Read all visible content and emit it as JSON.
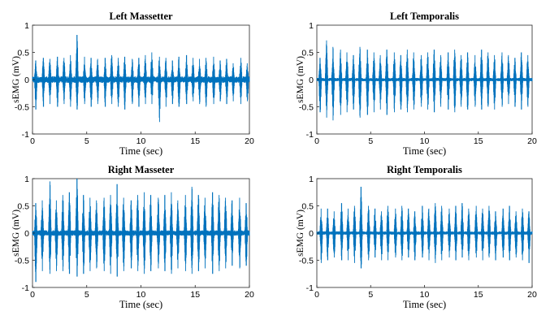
{
  "chart_data": [
    {
      "type": "line",
      "title": "Left Massetter",
      "xlabel": "Time (sec)",
      "ylabel": "sEMG (mV)",
      "xlim": [
        0,
        20
      ],
      "ylim": [
        -1,
        1
      ],
      "xticks": [
        "0",
        "5",
        "10",
        "15",
        "20"
      ],
      "yticks": [
        "1",
        "0.5",
        "0",
        "-0.5",
        "-1"
      ],
      "color": "#0072BD",
      "grid": false,
      "series": [
        {
          "burst_times": [
            0.3,
            1.0,
            1.6,
            2.3,
            2.9,
            3.5,
            4.1,
            4.8,
            5.4,
            6.0,
            6.7,
            7.3,
            7.9,
            8.5,
            9.2,
            9.8,
            10.4,
            11.0,
            11.7,
            12.3,
            12.9,
            13.5,
            14.2,
            14.8,
            15.4,
            16.0,
            16.7,
            17.3,
            17.9,
            18.5,
            19.2,
            19.8
          ],
          "burst_max": [
            0.35,
            0.4,
            0.38,
            0.42,
            0.4,
            0.45,
            0.82,
            0.42,
            0.4,
            0.38,
            0.4,
            0.45,
            0.4,
            0.42,
            0.38,
            0.4,
            0.45,
            0.5,
            0.42,
            0.4,
            0.35,
            0.42,
            0.45,
            0.4,
            0.38,
            0.4,
            0.42,
            0.35,
            0.38,
            0.3,
            0.4,
            0.3
          ],
          "burst_min": [
            -0.55,
            -0.5,
            -0.45,
            -0.5,
            -0.45,
            -0.5,
            -0.55,
            -0.45,
            -0.5,
            -0.45,
            -0.5,
            -0.45,
            -0.5,
            -0.55,
            -0.45,
            -0.5,
            -0.45,
            -0.45,
            -0.78,
            -0.5,
            -0.45,
            -0.5,
            -0.45,
            -0.4,
            -0.45,
            -0.5,
            -0.45,
            -0.4,
            -0.45,
            -0.4,
            -0.45,
            -0.4
          ],
          "baseline_amplitude": 0.06
        }
      ]
    },
    {
      "type": "line",
      "title": "Left Temporalis",
      "xlabel": "Time (sec)",
      "ylabel": "sEMG (mV)",
      "xlim": [
        0,
        20
      ],
      "ylim": [
        -1,
        1
      ],
      "xticks": [
        "0",
        "5",
        "10",
        "15",
        "20"
      ],
      "yticks": [
        "1",
        "0.5",
        "0",
        "-0.5",
        "-1"
      ],
      "color": "#0072BD",
      "grid": false,
      "series": [
        {
          "burst_times": [
            0.3,
            0.9,
            1.5,
            2.2,
            2.8,
            3.4,
            4.0,
            4.7,
            5.3,
            5.9,
            6.5,
            7.2,
            7.8,
            8.4,
            9.0,
            9.7,
            10.3,
            10.9,
            11.5,
            12.2,
            12.8,
            13.4,
            14.0,
            14.7,
            15.3,
            15.9,
            16.5,
            17.2,
            17.8,
            18.4,
            19.0,
            19.6
          ],
          "burst_max": [
            0.4,
            0.72,
            0.6,
            0.55,
            0.5,
            0.45,
            0.6,
            0.55,
            0.5,
            0.45,
            0.55,
            0.5,
            0.45,
            0.55,
            0.5,
            0.45,
            0.5,
            0.55,
            0.45,
            0.5,
            0.55,
            0.45,
            0.5,
            0.45,
            0.55,
            0.5,
            0.45,
            0.5,
            0.45,
            0.4,
            0.5,
            0.45
          ],
          "burst_min": [
            -0.6,
            -0.7,
            -0.75,
            -0.65,
            -0.6,
            -0.55,
            -0.7,
            -0.65,
            -0.6,
            -0.55,
            -0.65,
            -0.6,
            -0.55,
            -0.6,
            -0.55,
            -0.5,
            -0.55,
            -0.6,
            -0.5,
            -0.55,
            -0.6,
            -0.5,
            -0.55,
            -0.5,
            -0.55,
            -0.5,
            -0.55,
            -0.5,
            -0.45,
            -0.5,
            -0.55,
            -0.5
          ],
          "baseline_amplitude": 0.03
        }
      ]
    },
    {
      "type": "line",
      "title": "Right Masseter",
      "xlabel": "Time (sec)",
      "ylabel": "sEMG (mV)",
      "xlim": [
        0,
        20
      ],
      "ylim": [
        -1,
        1
      ],
      "xticks": [
        "0",
        "5",
        "10",
        "15",
        "20"
      ],
      "yticks": [
        "1",
        "0.5",
        "0",
        "-0.5",
        "-1"
      ],
      "color": "#0072BD",
      "grid": false,
      "series": [
        {
          "burst_times": [
            0.3,
            0.9,
            1.6,
            2.2,
            2.8,
            3.4,
            4.1,
            4.7,
            5.3,
            5.9,
            6.6,
            7.2,
            7.8,
            8.4,
            9.1,
            9.7,
            10.3,
            10.9,
            11.6,
            12.2,
            12.8,
            13.4,
            14.1,
            14.7,
            15.3,
            15.9,
            16.6,
            17.2,
            17.8,
            18.4,
            19.1,
            19.7
          ],
          "burst_max": [
            0.55,
            0.6,
            0.95,
            0.6,
            0.7,
            0.75,
            1.0,
            0.7,
            0.65,
            0.6,
            0.65,
            0.7,
            0.9,
            0.65,
            0.6,
            0.7,
            0.75,
            0.7,
            0.65,
            0.7,
            0.75,
            0.6,
            0.7,
            0.85,
            0.7,
            0.65,
            0.75,
            0.7,
            0.65,
            0.6,
            0.65,
            0.55
          ],
          "burst_min": [
            -0.9,
            -0.7,
            -0.75,
            -0.7,
            -0.7,
            -0.75,
            -0.8,
            -0.75,
            -0.7,
            -0.65,
            -0.7,
            -0.75,
            -0.8,
            -0.7,
            -0.65,
            -0.7,
            -0.75,
            -0.7,
            -0.65,
            -0.7,
            -0.75,
            -0.65,
            -0.7,
            -0.75,
            -0.7,
            -0.65,
            -0.75,
            -0.7,
            -0.65,
            -0.6,
            -0.65,
            -0.6
          ],
          "baseline_amplitude": 0.05
        }
      ]
    },
    {
      "type": "line",
      "title": "Right Temporalis",
      "xlabel": "Time (sec)",
      "ylabel": "sEMG (mV)",
      "xlim": [
        0,
        20
      ],
      "ylim": [
        -1,
        1
      ],
      "xticks": [
        "0",
        "5",
        "10",
        "15",
        "20"
      ],
      "yticks": [
        "1",
        "0.5",
        "0",
        "-0.5",
        "-1"
      ],
      "color": "#0072BD",
      "grid": false,
      "series": [
        {
          "burst_times": [
            0.4,
            1.0,
            1.6,
            2.3,
            2.9,
            3.5,
            4.1,
            4.8,
            5.4,
            6.0,
            6.6,
            7.3,
            7.9,
            8.5,
            9.1,
            9.8,
            10.4,
            11.0,
            11.6,
            12.3,
            12.9,
            13.5,
            14.1,
            14.8,
            15.4,
            16.0,
            16.6,
            17.3,
            17.9,
            18.5,
            19.1,
            19.7
          ],
          "burst_max": [
            0.45,
            0.45,
            0.4,
            0.55,
            0.45,
            0.5,
            0.85,
            0.5,
            0.45,
            0.4,
            0.5,
            0.45,
            0.5,
            0.45,
            0.4,
            0.5,
            0.45,
            0.55,
            0.5,
            0.45,
            0.5,
            0.55,
            0.45,
            0.5,
            0.45,
            0.5,
            0.4,
            0.45,
            0.5,
            0.4,
            0.45,
            0.4
          ],
          "burst_min": [
            -0.55,
            -0.5,
            -0.45,
            -0.5,
            -0.5,
            -0.55,
            -0.65,
            -0.5,
            -0.45,
            -0.5,
            -0.5,
            -0.45,
            -0.5,
            -0.45,
            -0.5,
            -0.45,
            -0.5,
            -0.55,
            -0.5,
            -0.45,
            -0.5,
            -0.45,
            -0.5,
            -0.45,
            -0.5,
            -0.45,
            -0.5,
            -0.45,
            -0.5,
            -0.45,
            -0.5,
            -0.55
          ],
          "baseline_amplitude": 0.03
        }
      ]
    }
  ]
}
